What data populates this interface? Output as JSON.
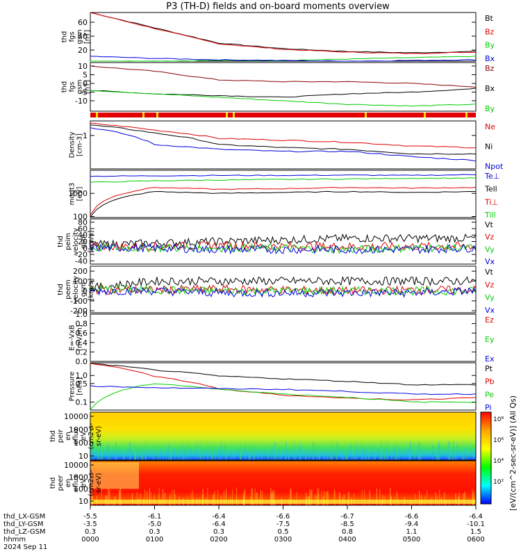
{
  "title": "P3 (TH-D) fields and on-board moments overview",
  "date_label": "2024 Sep 11",
  "colors": {
    "black": "#000000",
    "red": "#e00000",
    "darkred": "#8b0000",
    "green": "#00cc00",
    "blue": "#0000dd",
    "orange": "#ffa500",
    "yellow": "#e8e000"
  },
  "chart_data": [
    {
      "type": "line",
      "panel": "fgs-gsm",
      "ylabel_lines": [
        "thd",
        "fgs",
        "gsm",
        "[nT]"
      ],
      "ylim": [
        4,
        74
      ],
      "yticks": [
        20,
        40,
        60
      ],
      "x": [
        0,
        60,
        120,
        180,
        240,
        300,
        360
      ],
      "series": [
        {
          "name": "Bt",
          "color": "#000000",
          "values": [
            74,
            52,
            30,
            22,
            18,
            16,
            18
          ]
        },
        {
          "name": "Bz",
          "color": "#e00000",
          "values": [
            74,
            51,
            29,
            21,
            17,
            15,
            17
          ]
        },
        {
          "name": "By",
          "color": "#00cc00",
          "values": [
            4,
            4,
            5,
            5,
            7,
            9,
            11
          ]
        },
        {
          "name": "Bx",
          "color": "#0000dd",
          "values": [
            11,
            8,
            6,
            5,
            4,
            5,
            6
          ]
        }
      ]
    },
    {
      "type": "line",
      "panel": "fgs-gsm-detail",
      "ylabel_lines": [
        "thd",
        "fgs",
        "gsm",
        "[nT]"
      ],
      "ylim": [
        -16,
        12
      ],
      "yticks": [
        -10,
        -5,
        0,
        5,
        10
      ],
      "x": [
        0,
        60,
        120,
        180,
        240,
        300,
        360
      ],
      "series": [
        {
          "name": "Bz",
          "color": "#8b0000",
          "values": [
            10,
            7,
            2,
            1,
            1,
            0,
            -2
          ]
        },
        {
          "name": "Bx",
          "color": "#000000",
          "values": [
            -4,
            -6,
            -7,
            -8,
            -6,
            -5,
            -3
          ]
        },
        {
          "name": "By",
          "color": "#00cc00",
          "values": [
            -4,
            -6,
            -8,
            -10,
            -12,
            -13,
            -12
          ]
        }
      ]
    },
    {
      "type": "line",
      "panel": "density",
      "ylabel_lines": [
        "Density",
        "[cm-3]"
      ],
      "ylog": true,
      "ylim": [
        0.08,
        3
      ],
      "yticks": [
        1
      ],
      "x": [
        0,
        60,
        120,
        180,
        240,
        300,
        360
      ],
      "series": [
        {
          "name": "Ne",
          "color": "#e00000",
          "values": [
            2.5,
            1.5,
            0.8,
            0.7,
            0.6,
            0.45,
            0.4
          ]
        },
        {
          "name": "Ni",
          "color": "#000000",
          "values": [
            2.2,
            1.2,
            0.5,
            0.4,
            0.35,
            0.25,
            0.25
          ]
        },
        {
          "name": "Npot",
          "color": "#0000dd",
          "values": [
            1.8,
            0.5,
            0.35,
            0.3,
            0.3,
            0.2,
            0.15
          ]
        }
      ]
    },
    {
      "type": "line",
      "panel": "temperature",
      "ylabel_lines": [
        "mogt3",
        "[eV]"
      ],
      "ylog": true,
      "ylim": [
        90,
        10000
      ],
      "yticks": [
        100,
        1000
      ],
      "x": [
        0,
        60,
        120,
        180,
        240,
        300,
        360
      ],
      "series": [
        {
          "name": "Te⊥",
          "color": "#0000dd",
          "values": [
            5500,
            5800,
            6000,
            6000,
            6200,
            6000,
            6500
          ]
        },
        {
          "name": "Tell",
          "color": "#000000",
          "values": [
            100,
            1200,
            1000,
            1100,
            1200,
            1100,
            1200
          ]
        },
        {
          "name": "Ti⊥",
          "color": "#e00000",
          "values": [
            120,
            1800,
            1500,
            1600,
            1800,
            1700,
            1800
          ]
        },
        {
          "name": "Till",
          "color": "#00cc00",
          "values": [
            3000,
            3500,
            3800,
            4000,
            4200,
            4500,
            4600
          ]
        }
      ]
    },
    {
      "type": "line",
      "panel": "peim-velocity",
      "ylabel_lines": [
        "thd",
        "peim",
        "velocity",
        "gsm",
        "[km/s]"
      ],
      "ylim": [
        -50,
        90
      ],
      "yticks": [
        -40,
        -20,
        0,
        20,
        40,
        60,
        80
      ],
      "x": [
        0,
        60,
        120,
        180,
        240,
        300,
        360
      ],
      "series": [
        {
          "name": "Vt",
          "color": "#000000",
          "values": [
            10,
            15,
            20,
            25,
            30,
            30,
            30
          ]
        },
        {
          "name": "Vz",
          "color": "#e00000",
          "values": [
            5,
            5,
            8,
            5,
            5,
            5,
            5
          ]
        },
        {
          "name": "Vy",
          "color": "#00cc00",
          "values": [
            0,
            0,
            0,
            0,
            -5,
            0,
            0
          ]
        },
        {
          "name": "Vx",
          "color": "#0000dd",
          "values": [
            0,
            0,
            -5,
            -5,
            -5,
            -5,
            0
          ]
        }
      ]
    },
    {
      "type": "line",
      "panel": "peem-velocity",
      "ylabel_lines": [
        "thd",
        "peem",
        "velocity",
        "gsm",
        "[km/s]"
      ],
      "ylim": [
        -220,
        250
      ],
      "yticks": [
        -200,
        -100,
        0,
        100,
        200
      ],
      "x": [
        0,
        60,
        120,
        180,
        240,
        300,
        360
      ],
      "series": [
        {
          "name": "Vt",
          "color": "#000000",
          "values": [
            30,
            100,
            100,
            100,
            100,
            100,
            100
          ]
        },
        {
          "name": "Vz",
          "color": "#e00000",
          "values": [
            10,
            10,
            20,
            10,
            0,
            10,
            10
          ]
        },
        {
          "name": "Vy",
          "color": "#00cc00",
          "values": [
            20,
            10,
            0,
            0,
            0,
            0,
            0
          ]
        },
        {
          "name": "Vx",
          "color": "#0000dd",
          "values": [
            0,
            0,
            -20,
            -20,
            -20,
            -20,
            0
          ]
        }
      ]
    },
    {
      "type": "line",
      "panel": "efield",
      "ylabel_lines": [
        "E=-VxB",
        "[mV/m]"
      ],
      "ylim": [
        0,
        1
      ],
      "yticks": [
        0.0,
        0.2,
        0.4,
        0.6,
        0.8,
        1.0
      ],
      "ytick_labels": [
        "0.0",
        "0.2",
        "0.4",
        "0.6",
        "0.8",
        "1.0"
      ],
      "x": [],
      "series": [
        {
          "name": "Ez",
          "color": "#e00000",
          "values": []
        },
        {
          "name": "Ey",
          "color": "#00cc00",
          "values": []
        },
        {
          "name": "Ex",
          "color": "#0000dd",
          "values": []
        }
      ]
    },
    {
      "type": "line",
      "panel": "pressure",
      "ylabel_lines": [
        "Pressure",
        "[nPa]"
      ],
      "ylog": true,
      "ylim": [
        0.05,
        3
      ],
      "yticks": [
        0.1,
        0.5,
        1.0
      ],
      "ytick_labels": [
        "0.1",
        "0.5",
        "1.0"
      ],
      "x": [
        0,
        60,
        120,
        180,
        240,
        300,
        360
      ],
      "series": [
        {
          "name": "Pt",
          "color": "#000000",
          "values": [
            2.8,
            1.6,
            0.95,
            0.75,
            0.6,
            0.45,
            0.45
          ]
        },
        {
          "name": "Pb",
          "color": "#e00000",
          "values": [
            2.8,
            0.9,
            0.3,
            0.18,
            0.14,
            0.12,
            0.15
          ]
        },
        {
          "name": "Pe",
          "color": "#00cc00",
          "values": [
            0.05,
            0.5,
            0.3,
            0.2,
            0.15,
            0.1,
            0.1
          ]
        },
        {
          "name": "Pi",
          "color": "#0000dd",
          "values": [
            0.4,
            0.35,
            0.32,
            0.3,
            0.25,
            0.2,
            0.2
          ]
        }
      ]
    },
    {
      "type": "heatmap",
      "panel": "peir-spectrogram",
      "ylabel_lines": [
        "thd",
        "peir",
        "en",
        "eflux",
        "eV",
        "(cm2-s-",
        "sr-eV)"
      ],
      "ytick_labels": [
        "10",
        "100",
        "1000",
        "10000"
      ]
    },
    {
      "type": "heatmap",
      "panel": "peer-spectrogram",
      "ylabel_lines": [
        "thd",
        "peer",
        "en",
        "eflux",
        "eV",
        "(cm2-s-",
        "sr-eV)"
      ],
      "ytick_labels": [
        "10",
        "100",
        "1000",
        "10000"
      ]
    }
  ],
  "colorbar": {
    "label": "[eV/(cm^2-sec-sr-eV)] (All Qs)",
    "tick_labels": [
      "10⁸",
      "10⁶",
      "10⁴",
      "10²"
    ]
  },
  "xaxis": {
    "row_labels": [
      "thd_LX-GSM",
      "thd_LY-GSM",
      "thd_LZ-GSM",
      "hhmm"
    ],
    "columns": [
      {
        "lx": "-5.5",
        "ly": "-3.5",
        "lz": "0.3",
        "hhmm": "0000"
      },
      {
        "lx": "-6.1",
        "ly": "-5.0",
        "lz": "0.3",
        "hhmm": "0100"
      },
      {
        "lx": "-6.4",
        "ly": "-6.4",
        "lz": "0.3",
        "hhmm": "0200"
      },
      {
        "lx": "-6.6",
        "ly": "-7.5",
        "lz": "0.5",
        "hhmm": "0300"
      },
      {
        "lx": "-6.7",
        "ly": "-8.5",
        "lz": "0.8",
        "hhmm": "0400"
      },
      {
        "lx": "-6.6",
        "ly": "-9.4",
        "lz": "1.1",
        "hhmm": "0500"
      },
      {
        "lx": "-6.4",
        "ly": "-10.1",
        "lz": "1.5",
        "hhmm": "0600"
      }
    ]
  }
}
